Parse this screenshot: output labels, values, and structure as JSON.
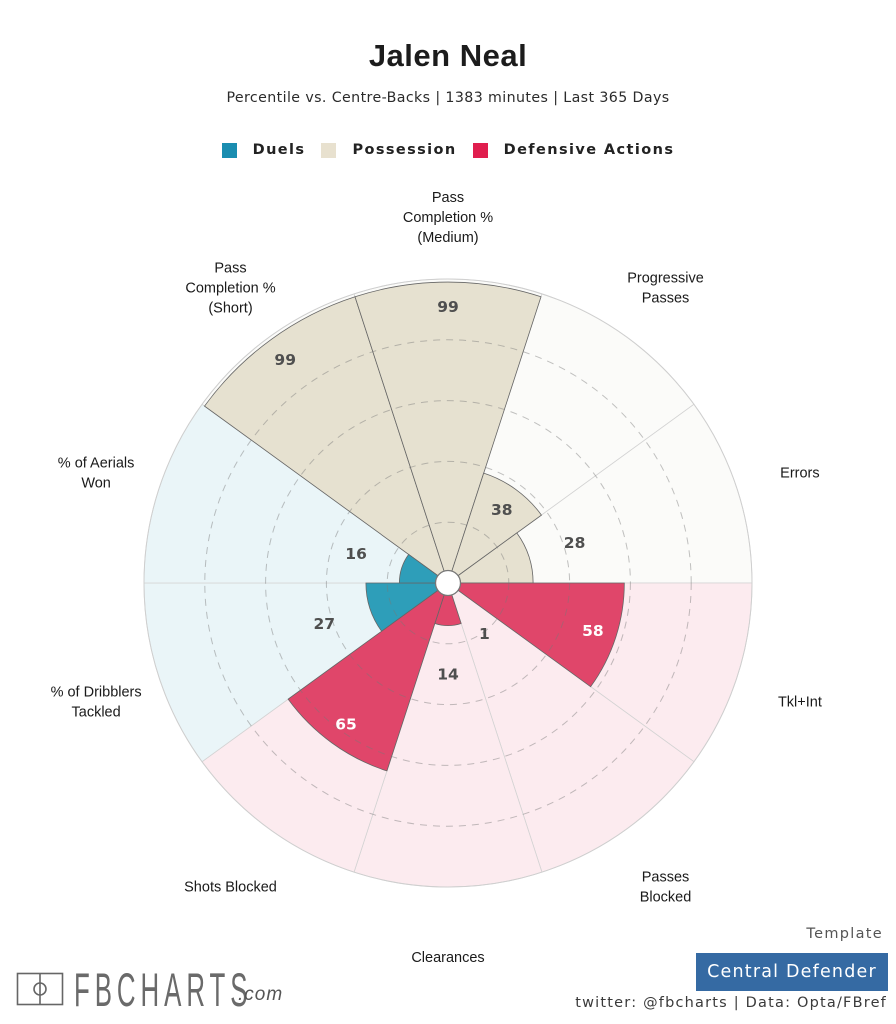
{
  "header": {
    "title": "Jalen Neal",
    "subtitle": "Percentile vs. Centre-Backs | 1383 minutes | Last 365 Days"
  },
  "legend": [
    {
      "label": "Duels",
      "color": "#1a8db0"
    },
    {
      "label": "Possession",
      "color": "#e8e1cf"
    },
    {
      "label": "Defensive Actions",
      "color": "#e01e4e"
    }
  ],
  "chart_data": {
    "type": "bar",
    "projection": "polar",
    "title": "Jalen Neal",
    "subtitle": "Percentile vs. Centre-Backs | 1383 minutes | Last 365 Days",
    "categories": [
      "Pass Completion % (Short)",
      "Pass Completion % (Medium)",
      "Progressive Passes",
      "Errors",
      "Tkl+Int",
      "Passes Blocked",
      "Clearances",
      "Shots Blocked",
      "% of Dribblers Tackled",
      "% of Aerials Won"
    ],
    "category_labels": [
      [
        "Pass",
        "Completion %",
        "(Short)"
      ],
      [
        "Pass",
        "Completion %",
        "(Medium)"
      ],
      [
        "Progressive",
        "Passes"
      ],
      [
        "Errors"
      ],
      [
        "Tkl+Int"
      ],
      [
        "Passes",
        "Blocked"
      ],
      [
        "Clearances"
      ],
      [
        "Shots Blocked"
      ],
      [
        "% of Dribblers",
        "Tackled"
      ],
      [
        "% of Aerials",
        "Won"
      ]
    ],
    "groups": [
      "Possession",
      "Possession",
      "Possession",
      "Possession",
      "Defensive Actions",
      "Defensive Actions",
      "Defensive Actions",
      "Defensive Actions",
      "Duels",
      "Duels"
    ],
    "values": [
      99,
      99,
      38,
      28,
      58,
      1,
      14,
      65,
      27,
      16
    ],
    "value_labels": [
      "99",
      "99",
      "38",
      "28",
      "58",
      "1",
      "14",
      "65",
      "27",
      "16"
    ],
    "rlim": [
      0,
      100
    ],
    "rgrid": [
      20,
      40,
      60,
      80
    ],
    "grid": true,
    "direction": "clockwise",
    "legend_position": "top-center",
    "group_colors": {
      "Duels": {
        "fill": "#2e9eb9",
        "background": "#eaf5f8",
        "label_inside": "#ffffff"
      },
      "Possession": {
        "fill": "#e6e1d0",
        "background": "#fbfbf9",
        "label_inside": "#4f4f4f"
      },
      "Defensive Actions": {
        "fill": "#e0466a",
        "background": "#fcebef",
        "label_inside": "#ffffff"
      }
    }
  },
  "footer": {
    "logo_text": "FBCHARTS",
    "logo_suffix": ".com",
    "template_label": "Template",
    "template_name": "Central Defender",
    "template_color": "#356aa3",
    "credit": "twitter: @fbcharts | Data: Opta/FBref"
  }
}
